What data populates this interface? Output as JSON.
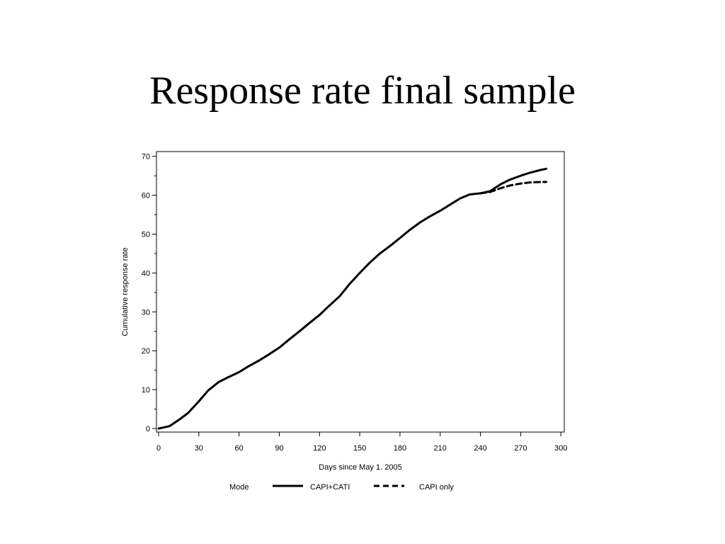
{
  "slide": {
    "title": "Response rate final sample"
  },
  "chart_data": {
    "type": "line",
    "xlabel": "Days since May 1. 2005",
    "ylabel": "Cumulative response rate",
    "xlim": [
      0,
      300
    ],
    "ylim": [
      0,
      70
    ],
    "x_ticks": [
      0,
      30,
      60,
      90,
      120,
      150,
      180,
      210,
      240,
      270,
      300
    ],
    "y_ticks": [
      0,
      10,
      20,
      30,
      40,
      50,
      60,
      70
    ],
    "grid": false,
    "legend": {
      "title": "Mode",
      "placement": "bottom"
    },
    "series": [
      {
        "name": "CAPI+CATI",
        "style": "solid",
        "color": "#000000",
        "x": [
          0,
          8,
          15,
          22,
          30,
          37,
          45,
          52,
          60,
          67,
          75,
          82,
          90,
          97,
          105,
          112,
          120,
          127,
          135,
          142,
          150,
          157,
          165,
          172,
          180,
          187,
          195,
          202,
          210,
          217,
          225,
          232,
          240,
          247,
          255,
          262,
          270,
          277,
          285,
          289
        ],
        "y": [
          0,
          0.6,
          2.2,
          4.0,
          7.0,
          9.8,
          12.0,
          13.2,
          14.5,
          16.0,
          17.5,
          19.0,
          20.8,
          22.8,
          25.0,
          27.0,
          29.2,
          31.5,
          34.0,
          37.0,
          40.0,
          42.5,
          45.0,
          46.8,
          49.0,
          51.0,
          53.0,
          54.5,
          56.0,
          57.5,
          59.2,
          60.2,
          60.5,
          61.0,
          62.8,
          64.0,
          65.0,
          65.8,
          66.5,
          66.8
        ]
      },
      {
        "name": "CAPI only",
        "style": "dashed",
        "color": "#000000",
        "x": [
          240,
          247,
          255,
          262,
          270,
          277,
          285,
          289
        ],
        "y": [
          60.5,
          60.8,
          61.8,
          62.5,
          63.0,
          63.3,
          63.4,
          63.4
        ]
      }
    ]
  }
}
